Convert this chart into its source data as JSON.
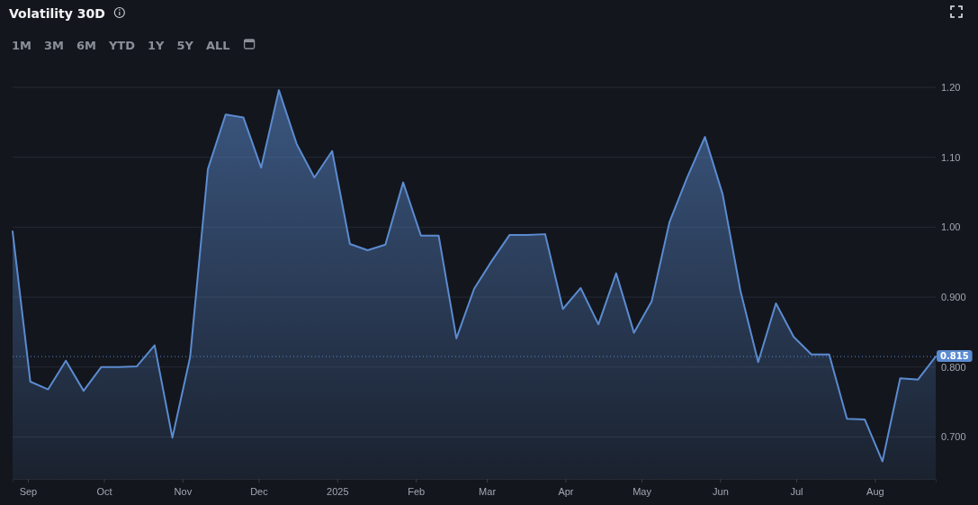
{
  "chart_data": {
    "type": "area",
    "title": "Volatility 30D",
    "annotations": [
      "1M",
      "3M",
      "6M",
      "YTD",
      "1Y",
      "5Y",
      "ALL"
    ],
    "x": [
      "2024-08-26",
      "2024-09-02",
      "2024-09-09",
      "2024-09-16",
      "2024-09-23",
      "2024-09-30",
      "2024-10-07",
      "2024-10-14",
      "2024-10-21",
      "2024-10-28",
      "2024-11-04",
      "2024-11-11",
      "2024-11-18",
      "2024-11-25",
      "2024-12-02",
      "2024-12-09",
      "2024-12-16",
      "2024-12-23",
      "2024-12-30",
      "2025-01-06",
      "2025-01-13",
      "2025-01-20",
      "2025-01-27",
      "2025-02-03",
      "2025-02-10",
      "2025-02-17",
      "2025-02-24",
      "2025-03-03",
      "2025-03-10",
      "2025-03-17",
      "2025-03-24",
      "2025-03-31",
      "2025-04-07",
      "2025-04-14",
      "2025-04-21",
      "2025-04-28",
      "2025-05-05",
      "2025-05-12",
      "2025-05-19",
      "2025-05-26",
      "2025-06-02",
      "2025-06-09",
      "2025-06-16",
      "2025-06-23",
      "2025-06-30",
      "2025-07-07",
      "2025-07-14",
      "2025-07-21",
      "2025-07-28",
      "2025-08-04",
      "2025-08-11",
      "2025-08-18",
      "2025-08-25"
    ],
    "series": [
      {
        "color": "#5b8bd0",
        "values": [
          0.994,
          0.779,
          0.768,
          0.809,
          0.766,
          0.8,
          0.8,
          0.801,
          0.831,
          0.699,
          0.814,
          1.083,
          1.161,
          1.157,
          1.085,
          1.196,
          1.119,
          1.071,
          1.109,
          0.976,
          0.967,
          0.975,
          1.064,
          0.988,
          0.988,
          0.841,
          0.912,
          0.952,
          0.989,
          0.989,
          0.99,
          0.883,
          0.913,
          0.861,
          0.934,
          0.849,
          0.894,
          1.007,
          1.071,
          1.129,
          1.047,
          0.909,
          0.807,
          0.891,
          0.843,
          0.818,
          0.818,
          0.726,
          0.725,
          0.665,
          0.784,
          0.782,
          0.815
        ]
      }
    ],
    "xlim": [
      "2024-08-26",
      "2025-08-25"
    ],
    "xticks": [
      {
        "value": "2024-09-01",
        "label": "Sep"
      },
      {
        "value": "2024-10-01",
        "label": "Oct"
      },
      {
        "value": "2024-11-01",
        "label": "Nov"
      },
      {
        "value": "2024-12-01",
        "label": "Dec"
      },
      {
        "value": "2025-01-01",
        "label": "2025"
      },
      {
        "value": "2025-02-01",
        "label": "Feb"
      },
      {
        "value": "2025-03-01",
        "label": "Mar"
      },
      {
        "value": "2025-04-01",
        "label": "Apr"
      },
      {
        "value": "2025-05-01",
        "label": "May"
      },
      {
        "value": "2025-06-01",
        "label": "Jun"
      },
      {
        "value": "2025-07-01",
        "label": "Jul"
      },
      {
        "value": "2025-08-01",
        "label": "Aug"
      }
    ],
    "ylim": [
      0.64,
      1.2
    ],
    "yticks": [
      {
        "value": 0.7,
        "label": "0.700"
      },
      {
        "value": 0.8,
        "label": "0.800"
      },
      {
        "value": 0.9,
        "label": "0.900"
      },
      {
        "value": 1.0,
        "label": "1.00"
      },
      {
        "value": 1.1,
        "label": "1.10"
      },
      {
        "value": 1.2,
        "label": "1.20"
      }
    ],
    "grid": "y",
    "ref_lines": [
      {
        "axis": "y",
        "value": 0.815,
        "label": "0.815",
        "color": "#5b8bd0",
        "line_style": "dotted"
      }
    ]
  }
}
